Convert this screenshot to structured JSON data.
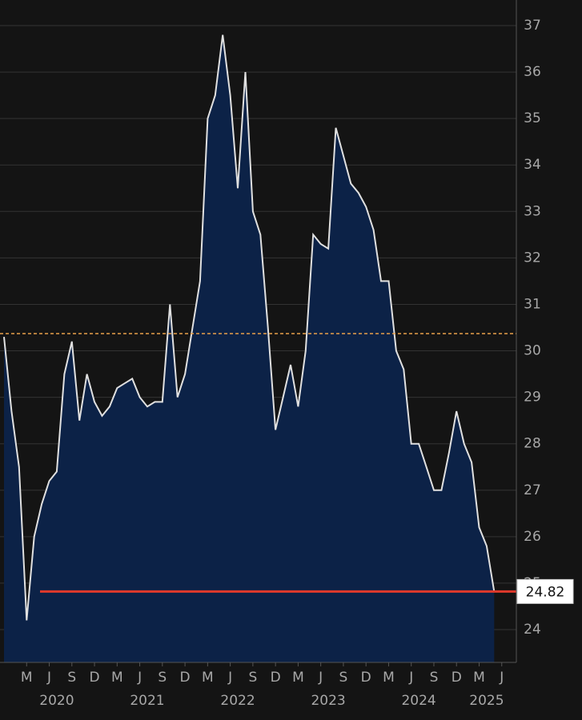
{
  "chart_data": {
    "type": "area",
    "x": [
      "2019-12",
      "2020-01",
      "2020-02",
      "2020-03",
      "2020-04",
      "2020-05",
      "2020-06",
      "2020-07",
      "2020-08",
      "2020-09",
      "2020-10",
      "2020-11",
      "2020-12",
      "2021-01",
      "2021-02",
      "2021-03",
      "2021-04",
      "2021-05",
      "2021-06",
      "2021-07",
      "2021-08",
      "2021-09",
      "2021-10",
      "2021-11",
      "2021-12",
      "2022-01",
      "2022-02",
      "2022-03",
      "2022-04",
      "2022-05",
      "2022-06",
      "2022-07",
      "2022-08",
      "2022-09",
      "2022-10",
      "2022-11",
      "2022-12",
      "2023-01",
      "2023-02",
      "2023-03",
      "2023-04",
      "2023-05",
      "2023-06",
      "2023-07",
      "2023-08",
      "2023-09",
      "2023-10",
      "2023-11",
      "2023-12",
      "2024-01",
      "2024-02",
      "2024-03",
      "2024-04",
      "2024-05",
      "2024-06",
      "2024-07",
      "2024-08",
      "2024-09",
      "2024-10",
      "2024-11",
      "2024-12",
      "2025-01",
      "2025-02",
      "2025-03",
      "2025-04",
      "2025-05"
    ],
    "values": [
      30.3,
      28.7,
      27.5,
      24.2,
      26.0,
      26.7,
      27.2,
      27.4,
      29.5,
      30.2,
      28.5,
      29.5,
      28.9,
      28.6,
      28.8,
      29.2,
      29.3,
      29.4,
      29.0,
      28.8,
      28.9,
      28.9,
      31.0,
      29.0,
      29.5,
      30.5,
      31.5,
      35.0,
      35.5,
      36.8,
      35.5,
      33.5,
      36.0,
      33.0,
      32.5,
      30.5,
      28.3,
      29.0,
      29.7,
      28.8,
      30.0,
      32.5,
      32.3,
      32.2,
      34.8,
      34.2,
      33.6,
      33.4,
      33.1,
      32.6,
      31.5,
      31.5,
      30.0,
      29.6,
      28.0,
      28.0,
      27.5,
      27.0,
      27.0,
      27.8,
      28.7,
      28.0,
      27.6,
      26.2,
      25.8,
      24.82
    ],
    "line_color": "#e0e0e0",
    "fill_color": "#0c2247",
    "reference_line": 30.37,
    "reference_color": "#e8a04a",
    "last_line_color": "#e0392b",
    "xlim": [
      "2019-12",
      "2025-08"
    ],
    "xticks": [
      {
        "value": "2020-03",
        "label": "M"
      },
      {
        "value": "2020-06",
        "label": "J"
      },
      {
        "value": "2020-09",
        "label": "S"
      },
      {
        "value": "2020-12",
        "label": "D"
      },
      {
        "value": "2021-03",
        "label": "M"
      },
      {
        "value": "2021-06",
        "label": "J"
      },
      {
        "value": "2021-09",
        "label": "S"
      },
      {
        "value": "2021-12",
        "label": "D"
      },
      {
        "value": "2022-03",
        "label": "M"
      },
      {
        "value": "2022-06",
        "label": "J"
      },
      {
        "value": "2022-09",
        "label": "S"
      },
      {
        "value": "2022-12",
        "label": "D"
      },
      {
        "value": "2023-03",
        "label": "M"
      },
      {
        "value": "2023-06",
        "label": "J"
      },
      {
        "value": "2023-09",
        "label": "S"
      },
      {
        "value": "2023-12",
        "label": "D"
      },
      {
        "value": "2024-03",
        "label": "M"
      },
      {
        "value": "2024-06",
        "label": "J"
      },
      {
        "value": "2024-09",
        "label": "S"
      },
      {
        "value": "2024-12",
        "label": "D"
      },
      {
        "value": "2025-03",
        "label": "M"
      },
      {
        "value": "2025-06",
        "label": "J"
      }
    ],
    "year_labels": [
      {
        "value": "2020-07",
        "label": "2020"
      },
      {
        "value": "2021-07",
        "label": "2021"
      },
      {
        "value": "2022-07",
        "label": "2022"
      },
      {
        "value": "2023-07",
        "label": "2023"
      },
      {
        "value": "2024-07",
        "label": "2024"
      },
      {
        "value": "2025-04",
        "label": "2025"
      }
    ],
    "ylim": [
      24,
      37
    ],
    "yticks": [
      24,
      25,
      26,
      27,
      28,
      29,
      30,
      31,
      32,
      33,
      34,
      35,
      36,
      37
    ],
    "grid": true
  }
}
